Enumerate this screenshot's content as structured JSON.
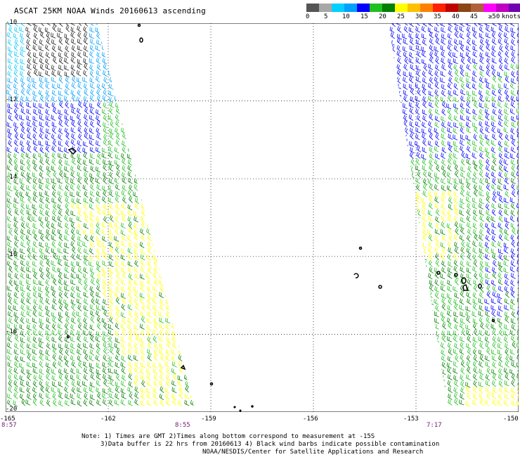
{
  "title": "ASCAT 25KM NOAA Winds 20160613 ascending",
  "scale": {
    "unit": "knots",
    "labels": [
      "0",
      "5",
      "10",
      "15",
      "20",
      "25",
      "30",
      "35",
      "40",
      "45",
      "≥50"
    ],
    "colors": [
      "#555555",
      "#a8a8a8",
      "#00d0ff",
      "#00a0ff",
      "#0000ff",
      "#20c020",
      "#008000",
      "#ffff00",
      "#ffc000",
      "#ff8000",
      "#ff2000",
      "#c00000",
      "#8b4513",
      "#b0603a",
      "#ff00ff",
      "#c000c0",
      "#7000b0"
    ]
  },
  "axes": {
    "lat_labels": [
      "-10",
      "-12",
      "-14",
      "-16",
      "-18",
      "-20"
    ],
    "lon_labels": [
      "-165",
      "-162",
      "-159",
      "-156",
      "-153",
      "-150"
    ]
  },
  "pass_times": [
    "8:57",
    "8:55",
    "7:17"
  ],
  "notes": [
    "Note: 1) Times are GMT 2)Times along bottom correspond to measurement at -15S",
    "3)Data buffer is 22 hrs from 20160613 4) Black wind barbs indicate possible contamination",
    "NOAA/NESDIS/Center for Satellite Applications and Research"
  ]
}
